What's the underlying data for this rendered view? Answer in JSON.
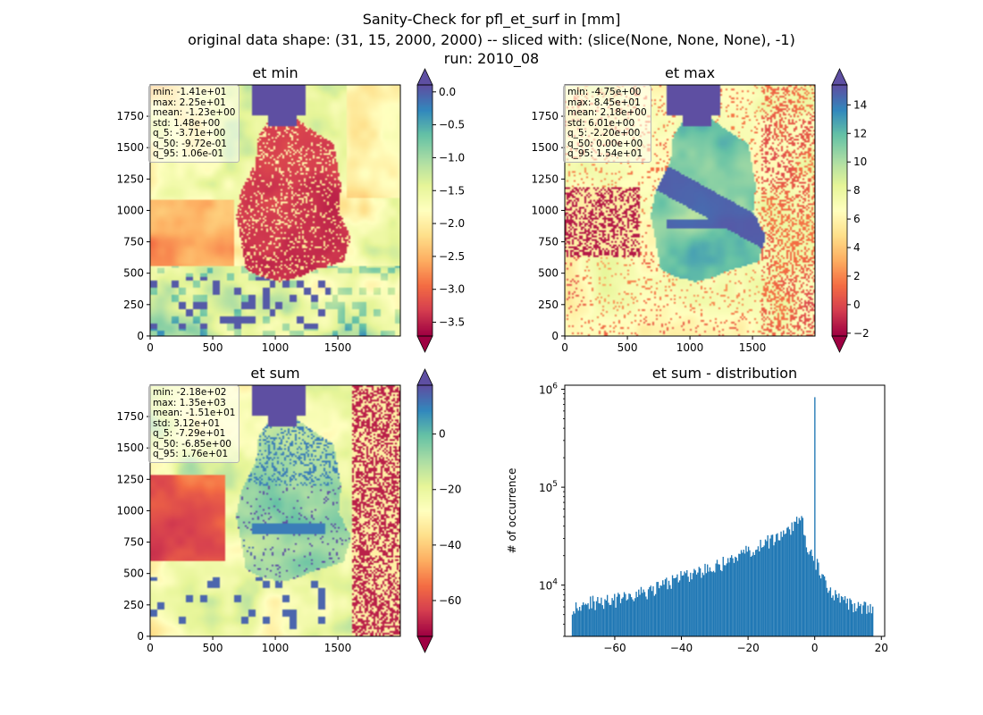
{
  "figure": {
    "title_line1": "Sanity-Check for pfl_et_surf in [mm]",
    "title_line2": "original data shape: (31, 15, 2000, 2000) -- sliced with: (slice(None, None, None), -1)",
    "title_line3": "run: 2010_08"
  },
  "colors": {
    "cmap": [
      "#9e0142",
      "#d53e4f",
      "#f46d43",
      "#fdae61",
      "#fee08b",
      "#ffffbf",
      "#e6f598",
      "#abdda4",
      "#66c2a5",
      "#3288bd",
      "#5e4fa2"
    ],
    "hist_bar": "#1f77b4",
    "spine": "#000000"
  },
  "panels": [
    {
      "title": "et min",
      "map_ticks_x": [
        "0",
        "500",
        "1000",
        "1500"
      ],
      "map_ticks_y": [
        "0",
        "250",
        "500",
        "750",
        "1000",
        "1250",
        "1500",
        "1750"
      ],
      "colorbar": {
        "vmin": -3.71,
        "vmax": 0.106,
        "ticks": [
          "0.0",
          "−0.5",
          "−1.0",
          "−1.5",
          "−2.0",
          "−2.5",
          "−3.0",
          "−3.5"
        ],
        "tick_values": [
          0,
          -0.5,
          -1,
          -1.5,
          -2,
          -2.5,
          -3,
          -3.5
        ]
      },
      "stats": [
        "min: -1.41e+01",
        "max: 2.25e+01",
        "mean: -1.23e+00",
        "std: 1.48e+00",
        "q_5: -3.71e+00",
        "q_50: -9.72e-01",
        "q_95: 1.06e-01"
      ]
    },
    {
      "title": "et max",
      "map_ticks_x": [
        "0",
        "500",
        "1000",
        "1500"
      ],
      "map_ticks_y": [
        "0",
        "250",
        "500",
        "750",
        "1000",
        "1250",
        "1500",
        "1750"
      ],
      "colorbar": {
        "vmin": -2.2,
        "vmax": 15.4,
        "ticks": [
          "14",
          "12",
          "10",
          "8",
          "6",
          "4",
          "2",
          "0",
          "−2"
        ],
        "tick_values": [
          14,
          12,
          10,
          8,
          6,
          4,
          2,
          0,
          -2
        ]
      },
      "stats": [
        "min: -4.75e+00",
        "max: 8.45e+01",
        "mean: 2.18e+00",
        "std: 6.01e+00",
        "q_5: -2.20e+00",
        "q_50: 0.00e+00",
        "q_95: 1.54e+01"
      ]
    },
    {
      "title": "et sum",
      "map_ticks_x": [
        "0",
        "500",
        "1000",
        "1500"
      ],
      "map_ticks_y": [
        "0",
        "250",
        "500",
        "750",
        "1000",
        "1250",
        "1500",
        "1750"
      ],
      "colorbar": {
        "vmin": -72.9,
        "vmax": 17.6,
        "ticks": [
          "0",
          "−20",
          "−40",
          "−60"
        ],
        "tick_values": [
          0,
          -20,
          -40,
          -60
        ]
      },
      "stats": [
        "min: -2.18e+02",
        "max: 1.35e+03",
        "mean: -1.51e+01",
        "std: 3.12e+01",
        "q_5: -7.29e+01",
        "q_50: -6.85e+00",
        "q_95: 1.76e+01"
      ]
    }
  ],
  "chart_data": {
    "type": "bar",
    "title": "et sum - distribution",
    "xlabel": "",
    "ylabel": "# of occurrence",
    "yscale": "log",
    "xlim": [
      -75,
      21
    ],
    "ylim": [
      3000,
      1100000
    ],
    "x_ticks": [
      -60,
      -40,
      -20,
      0,
      20
    ],
    "x_tick_labels": [
      "−60",
      "−40",
      "−20",
      "0",
      "20"
    ],
    "y_ticks": [
      10000,
      100000,
      1000000
    ],
    "y_tick_labels": [
      "10^4",
      "10^5",
      "10^6"
    ],
    "bin_range": [
      -72.9,
      17.6
    ],
    "anchors": [
      [
        -72.9,
        6000
      ],
      [
        -70,
        6500
      ],
      [
        -65,
        6700
      ],
      [
        -60,
        7000
      ],
      [
        -55,
        7600
      ],
      [
        -50,
        8600
      ],
      [
        -45,
        10200
      ],
      [
        -40,
        12000
      ],
      [
        -35,
        13500
      ],
      [
        -30,
        15500
      ],
      [
        -25,
        18500
      ],
      [
        -20,
        22000
      ],
      [
        -15,
        27000
      ],
      [
        -10,
        32000
      ],
      [
        -7,
        37000
      ],
      [
        -5,
        45000
      ],
      [
        -4,
        55000
      ],
      [
        -3.5,
        45000
      ],
      [
        -3,
        30000
      ],
      [
        -2,
        22000
      ],
      [
        -1,
        20000
      ],
      [
        -0.3,
        18000
      ],
      [
        0.8,
        16000
      ],
      [
        2,
        12000
      ],
      [
        5,
        8500
      ],
      [
        8,
        7200
      ],
      [
        12,
        6300
      ],
      [
        17.6,
        5600
      ]
    ],
    "spike": {
      "x": 0,
      "count": 830000
    }
  }
}
